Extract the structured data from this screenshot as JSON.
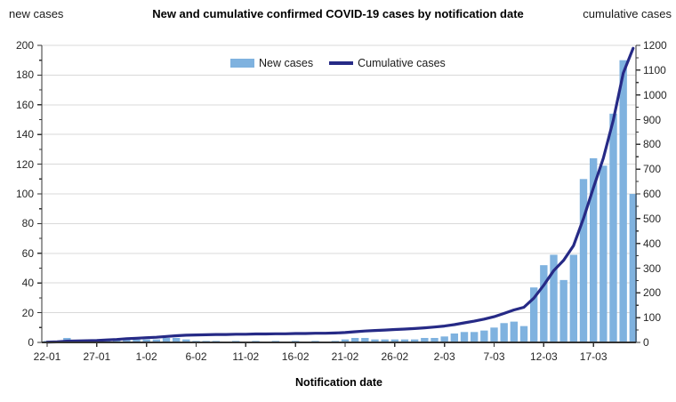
{
  "header": {
    "title": "New and cumulative confirmed COVID-19 cases by notification date",
    "left_axis_title": "new cases",
    "right_axis_title": "cumulative cases"
  },
  "legend": {
    "items": [
      {
        "label": "New cases",
        "swatch": "bar"
      },
      {
        "label": "Cumulative cases",
        "swatch": "line"
      }
    ]
  },
  "x_axis": {
    "title": "Notification date",
    "tick_label_indices": [
      0,
      5,
      10,
      15,
      20,
      25,
      30,
      35,
      40,
      45,
      50,
      55
    ],
    "tick_labels": [
      "22-01",
      "27-01",
      "1-02",
      "6-02",
      "11-02",
      "16-02",
      "21-02",
      "26-02",
      "2-03",
      "7-03",
      "12-03",
      "17-03"
    ]
  },
  "y_axis_left": {
    "min": 0,
    "max": 200,
    "major_step": 20,
    "minor_step": 10
  },
  "y_axis_right": {
    "min": 0,
    "max": 1200,
    "major_step": 100,
    "minor_step": 50
  },
  "colors": {
    "bar_fill": "#7FB2DF",
    "line_stroke": "#262A86",
    "gridline": "#D9D9D9",
    "axis": "#333333",
    "text": "#262626"
  },
  "chart_data": {
    "type": "bar",
    "note": "combination chart: bars (new cases, left axis) + line (cumulative cases, right axis)",
    "title": "New and cumulative confirmed COVID-19 cases by notification date",
    "xlabel": "Notification date",
    "ylabel_left": "new cases",
    "ylabel_right": "cumulative cases",
    "ylim_left": [
      0,
      200
    ],
    "ylim_right": [
      0,
      1200
    ],
    "grid": "horizontal",
    "legend_position": "top-center-inside",
    "categories": [
      "22-01",
      "23-01",
      "24-01",
      "25-01",
      "26-01",
      "27-01",
      "28-01",
      "29-01",
      "30-01",
      "31-01",
      "1-02",
      "2-02",
      "3-02",
      "4-02",
      "5-02",
      "6-02",
      "7-02",
      "8-02",
      "9-02",
      "10-02",
      "11-02",
      "12-02",
      "13-02",
      "14-02",
      "15-02",
      "16-02",
      "17-02",
      "18-02",
      "19-02",
      "20-02",
      "21-02",
      "22-02",
      "23-02",
      "24-02",
      "25-02",
      "26-02",
      "27-02",
      "28-02",
      "29-02",
      "1-03",
      "2-03",
      "3-03",
      "4-03",
      "5-03",
      "6-03",
      "7-03",
      "8-03",
      "9-03",
      "10-03",
      "11-03",
      "12-03",
      "13-03",
      "14-03",
      "15-03",
      "16-03",
      "17-03",
      "18-03",
      "19-03",
      "20-03",
      "21-03"
    ],
    "series": [
      {
        "name": "New cases",
        "type": "bar",
        "axis": "left",
        "values": [
          1,
          1,
          3,
          1,
          1,
          1,
          2,
          2,
          3,
          2,
          2,
          2,
          3,
          3,
          2,
          1,
          1,
          1,
          0,
          1,
          0,
          1,
          0,
          1,
          0,
          1,
          0,
          1,
          0,
          1,
          2,
          3,
          3,
          2,
          2,
          2,
          2,
          2,
          3,
          3,
          4,
          6,
          7,
          7,
          8,
          10,
          13,
          14,
          11,
          37,
          52,
          59,
          42,
          59,
          110,
          124,
          119,
          154,
          190,
          100
        ]
      },
      {
        "name": "Cumulative cases",
        "type": "line",
        "axis": "right",
        "values": [
          1,
          2,
          5,
          6,
          7,
          8,
          10,
          12,
          15,
          17,
          19,
          21,
          24,
          27,
          29,
          30,
          31,
          32,
          32,
          33,
          33,
          34,
          34,
          35,
          35,
          36,
          36,
          37,
          37,
          38,
          40,
          43,
          46,
          48,
          50,
          52,
          54,
          56,
          59,
          62,
          66,
          72,
          79,
          86,
          94,
          104,
          117,
          131,
          142,
          179,
          231,
          290,
          332,
          391,
          501,
          625,
          744,
          898,
          1088,
          1188
        ]
      }
    ]
  }
}
